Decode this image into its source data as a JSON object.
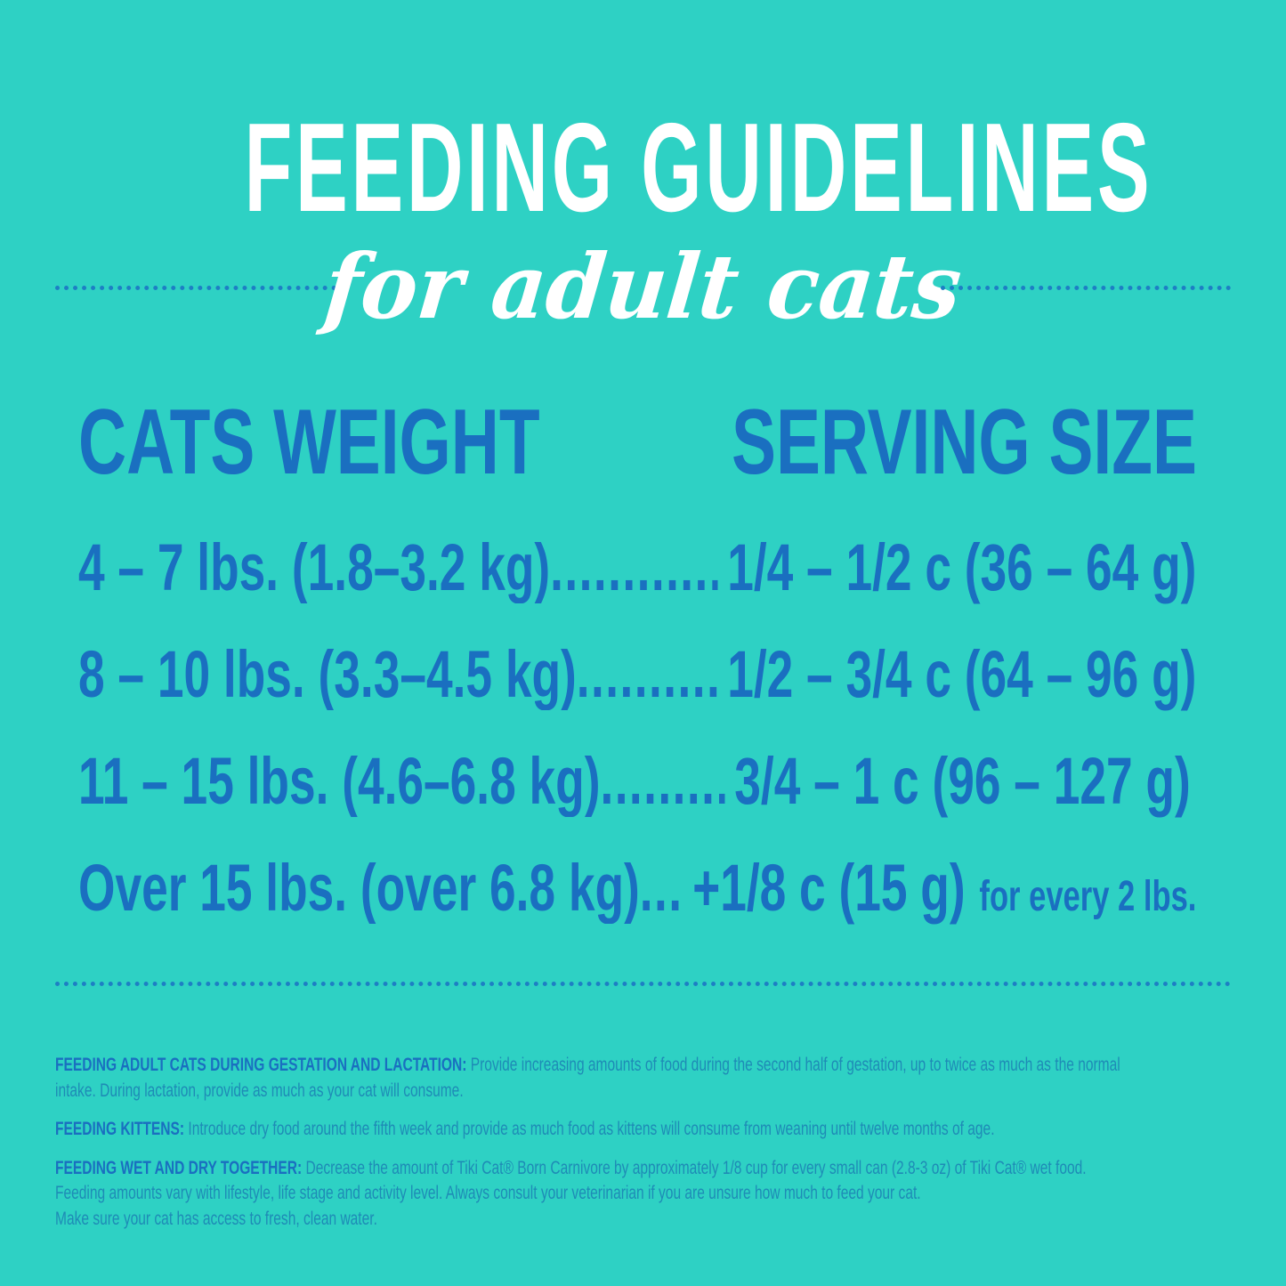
{
  "title": "FEEDING GUIDELINES",
  "subtitle": "for adult cats",
  "colors": {
    "background": "#2ed1c4",
    "title": "#ffffff",
    "accent_blue": "#1a6fc0",
    "note_text": "#1e8bb6"
  },
  "table": {
    "headers": [
      "CATS WEIGHT",
      "SERVING SIZE"
    ],
    "rows": [
      {
        "weight": "4 – 7 lbs. (1.8–3.2 kg)",
        "serving": "1/4 – 1/2 c (36 – 64 g)",
        "note": ""
      },
      {
        "weight": "8 – 10 lbs. (3.3–4.5 kg)",
        "serving": "1/2 – 3/4 c (64 – 96 g)",
        "note": ""
      },
      {
        "weight": "11 – 15 lbs. (4.6–6.8 kg)",
        "serving": "3/4 – 1 c (96 – 127 g)",
        "note": ""
      },
      {
        "weight": "Over 15 lbs. (over 6.8 kg)",
        "serving": "+1/8 c (15 g)",
        "note": "for every 2 lbs."
      }
    ]
  },
  "notes": [
    {
      "heading": "FEEDING ADULT CATS DURING GESTATION AND LACTATION:",
      "lines": [
        "Provide increasing amounts of food during the second half of gestation, up to twice as much as the normal",
        "intake.  During lactation, provide as much as your cat will consume."
      ]
    },
    {
      "heading": "FEEDING KITTENS:",
      "lines": [
        "Introduce dry food around the fifth week and provide as much food as kittens will consume from weaning until twelve months of age."
      ]
    },
    {
      "heading": "FEEDING WET AND DRY TOGETHER:",
      "lines": [
        "Decrease the amount of Tiki Cat® Born Carnivore by approximately 1/8 cup for every small can (2.8-3 oz) of Tiki Cat® wet food.",
        "Feeding amounts vary with lifestyle, life stage and activity level.  Always consult your veterinarian if you are unsure how much to feed your cat.",
        "Make sure your cat has access to fresh, clean water."
      ]
    }
  ]
}
